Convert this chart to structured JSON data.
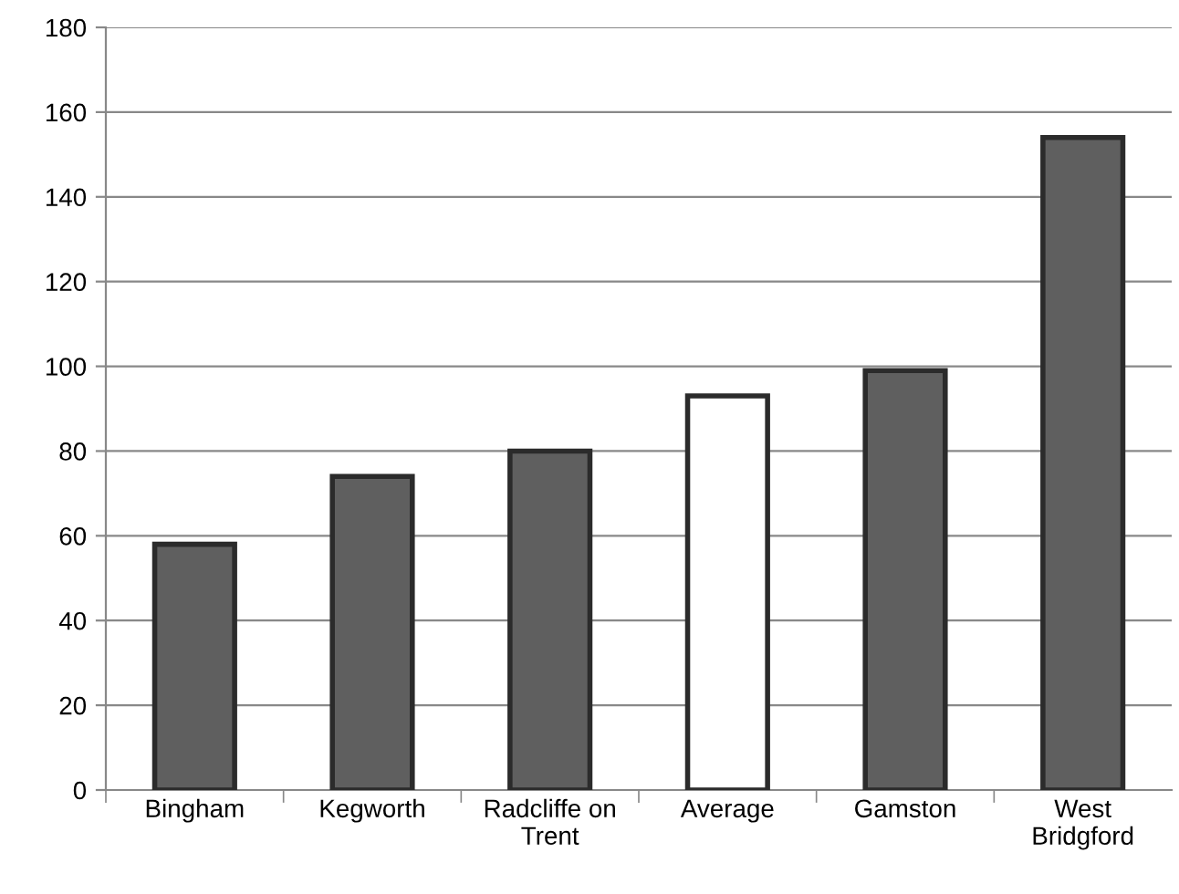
{
  "chart_data": {
    "type": "bar",
    "categories": [
      "Bingham",
      "Kegworth",
      "Radcliffe on\nTrent",
      "Average",
      "Gamston",
      "West\nBridgford"
    ],
    "values": [
      58,
      74,
      80,
      93,
      99,
      154
    ],
    "colors": [
      "#5f5f5f",
      "#5f5f5f",
      "#5f5f5f",
      "#ffffff",
      "#5f5f5f",
      "#5f5f5f"
    ],
    "ylim": [
      0,
      180
    ],
    "yticks": [
      0,
      20,
      40,
      60,
      80,
      100,
      120,
      140,
      160,
      180
    ],
    "grid": "y",
    "legend": false
  }
}
